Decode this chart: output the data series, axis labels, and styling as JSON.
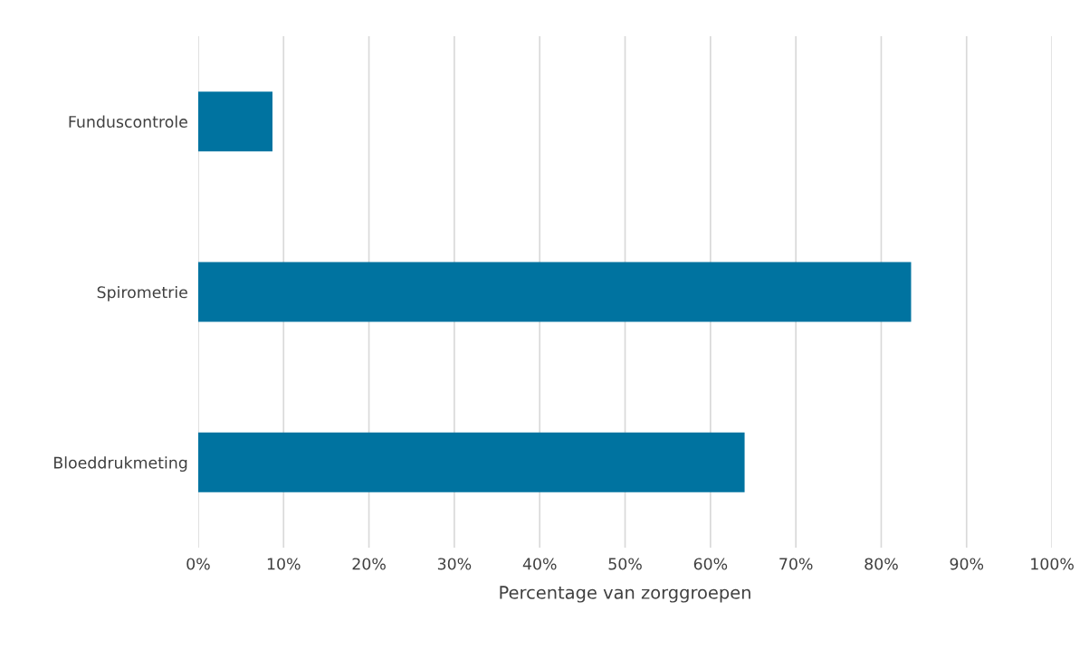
{
  "chart_data": {
    "type": "bar",
    "orientation": "horizontal",
    "xlabel": "Percentage van zorggroepen",
    "categories": [
      "Funduscontrole",
      "Spirometrie",
      "Bloeddrukmeting"
    ],
    "values": [
      8.7,
      83.5,
      64.0
    ],
    "color": "#0073a0",
    "xlim": [
      0,
      100
    ],
    "xticks": [
      {
        "value": 0,
        "label": "0%"
      },
      {
        "value": 10,
        "label": "10%"
      },
      {
        "value": 20,
        "label": "20%"
      },
      {
        "value": 30,
        "label": "30%"
      },
      {
        "value": 40,
        "label": "40%"
      },
      {
        "value": 50,
        "label": "50%"
      },
      {
        "value": 60,
        "label": "60%"
      },
      {
        "value": 70,
        "label": "70%"
      },
      {
        "value": 80,
        "label": "80%"
      },
      {
        "value": 90,
        "label": "90%"
      },
      {
        "value": 100,
        "label": "100%"
      }
    ],
    "grid": "x"
  }
}
